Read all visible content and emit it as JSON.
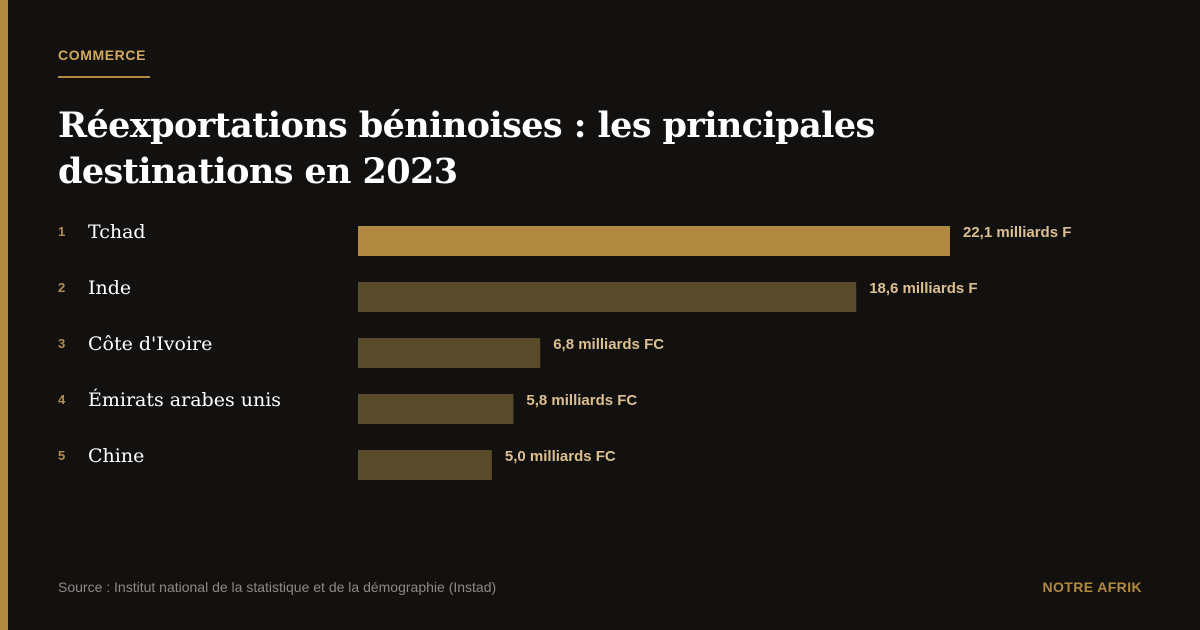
{
  "kicker": "COMMERCE",
  "title": "Réexportations béninoises : les principales destinations en 2023",
  "source": "Source : Institut national de la statistique et de la démographie (Instad)",
  "brand": "NOTRE AFRIK",
  "colors": {
    "accent": "#b08a40",
    "highlight_bar": "#b08a40",
    "muted_bar": "#5a4a2c",
    "background": "#131110"
  },
  "chart_data": {
    "type": "bar",
    "orientation": "horizontal",
    "categories": [
      "Tchad",
      "Inde",
      "Côte d'Ivoire",
      "Émirats arabes unis",
      "Chine"
    ],
    "ranks": [
      "1",
      "2",
      "3",
      "4",
      "5"
    ],
    "values": [
      22.1,
      18.6,
      6.8,
      5.8,
      5.0
    ],
    "value_labels": [
      "22,1 milliards F",
      "18,6 milliards F",
      "6,8 milliards FC",
      "5,8 milliards FC",
      "5,0 milliards FC"
    ],
    "highlighted_index": 0,
    "title": "Réexportations béninoises : les principales destinations en 2023",
    "xlabel": "",
    "ylabel": "",
    "grid": false,
    "legend": "none"
  }
}
